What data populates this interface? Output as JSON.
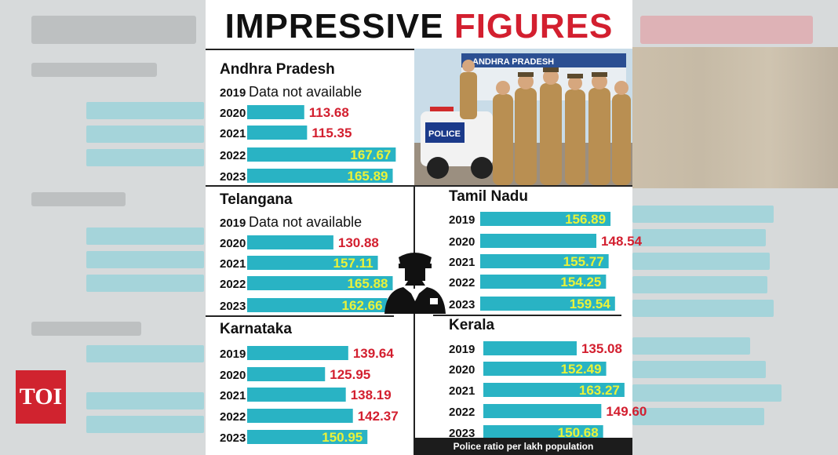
{
  "title": {
    "part1": "IMPRESSIVE",
    "part2": "FIGURES"
  },
  "footer": "Police ratio per lakh population",
  "brand": "TOI",
  "photo_sign": "ANDHRA PRADESH",
  "vehicle_sign": "POLICE",
  "colors": {
    "bar": "#29b3c4",
    "red_value": "#d31f2f",
    "yellow_value": "#eaf23a",
    "title_red": "#d31f2f"
  },
  "icons": [
    "police-officer-icon"
  ],
  "chart_data": [
    {
      "type": "bar",
      "title": "Andhra Pradesh",
      "categories": [
        "2019",
        "2020",
        "2021",
        "2022",
        "2023"
      ],
      "values": [
        null,
        113.68,
        115.35,
        167.67,
        165.89
      ],
      "labels": [
        "Data not available",
        "113.68",
        "115.35",
        "167.67",
        "165.89"
      ]
    },
    {
      "type": "bar",
      "title": "Telangana",
      "categories": [
        "2019",
        "2020",
        "2021",
        "2022",
        "2023"
      ],
      "values": [
        null,
        130.88,
        157.11,
        165.88,
        162.66
      ],
      "labels": [
        "Data not available",
        "130.88",
        "157.11",
        "165.88",
        "162.66"
      ]
    },
    {
      "type": "bar",
      "title": "Karnataka",
      "categories": [
        "2019",
        "2020",
        "2021",
        "2022",
        "2023"
      ],
      "values": [
        139.64,
        125.95,
        138.19,
        142.37,
        150.95
      ],
      "labels": [
        "139.64",
        "125.95",
        "138.19",
        "142.37",
        "150.95"
      ]
    },
    {
      "type": "bar",
      "title": "Tamil Nadu",
      "categories": [
        "2019",
        "2020",
        "2021",
        "2022",
        "2023"
      ],
      "values": [
        156.89,
        148.54,
        155.77,
        154.25,
        159.54
      ],
      "labels": [
        "156.89",
        "148.54",
        "155.77",
        "154.25",
        "159.54"
      ]
    },
    {
      "type": "bar",
      "title": "Kerala",
      "categories": [
        "2019",
        "2020",
        "2021",
        "2022",
        "2023"
      ],
      "values": [
        135.08,
        152.49,
        163.27,
        149.6,
        150.68
      ],
      "labels": [
        "135.08",
        "152.49",
        "163.27",
        "149.60",
        "150.68"
      ]
    }
  ]
}
